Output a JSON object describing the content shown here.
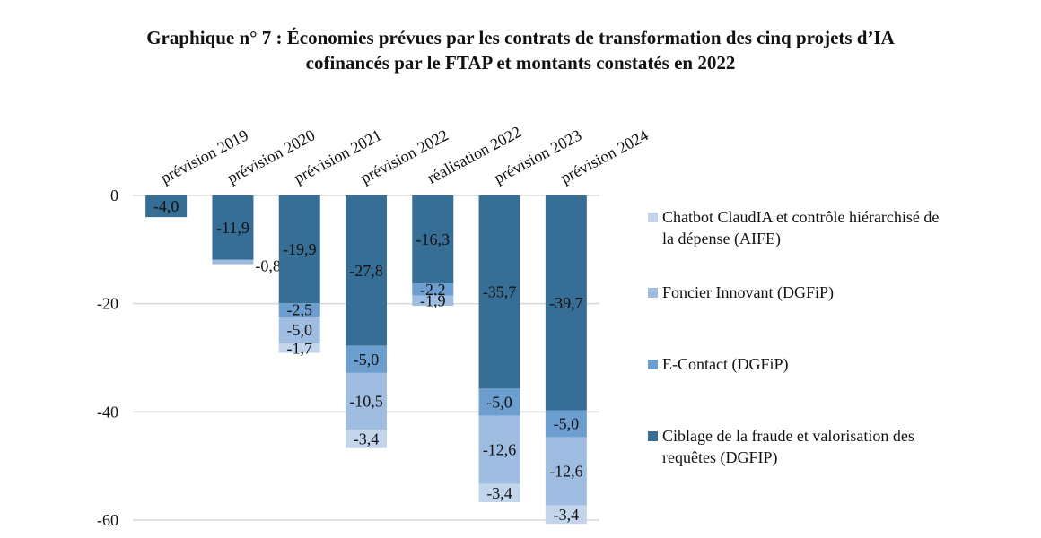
{
  "title_line1": "Graphique n° 7 :  Économies prévues par les contrats de transformation des cinq projets d’IA",
  "title_line2": "cofinancés par le FTAP et montants constatés en 2022",
  "chart_data": {
    "type": "bar",
    "stacked": true,
    "title": "Graphique n° 7 : Économies prévues par les contrats de transformation des cinq projets d’IA cofinancés par le FTAP et montants constatés en 2022",
    "xlabel": "",
    "ylabel": "",
    "categories": [
      "prévision 2019",
      "prévision 2020",
      "prévision 2021",
      "prévision 2022",
      "réalisation 2022",
      "prévision 2023",
      "prévision 2024"
    ],
    "ylim": [
      -60,
      0
    ],
    "yticks": [
      0,
      -20,
      -40,
      -60
    ],
    "ytick_labels": [
      "0",
      "-20",
      "-40",
      "-60"
    ],
    "grid": true,
    "legend_position": "right",
    "series": [
      {
        "name": "Ciblage de la fraude et valorisation des requêtes (DGFIP)",
        "color": "#376e96",
        "values": [
          -4.0,
          -11.9,
          -19.9,
          -27.8,
          -16.3,
          -35.7,
          -39.7
        ],
        "labels": [
          "-4,0",
          "-11,9",
          "-19,9",
          "-27,8",
          "-16,3",
          "-35,7",
          "-39,7"
        ]
      },
      {
        "name": "E-Contact (DGFiP)",
        "color": "#6c9fcf",
        "values": [
          null,
          null,
          -2.5,
          -5.0,
          -2.2,
          -5.0,
          -5.0
        ],
        "labels": [
          "",
          "",
          "-2,5",
          "-5,0",
          "-2,2",
          "-5,0",
          "-5,0"
        ]
      },
      {
        "name": "Foncier Innovant (DGFiP)",
        "color": "#9fbde0",
        "values": [
          null,
          -0.8,
          -5.0,
          -10.5,
          -1.9,
          -12.6,
          -12.6
        ],
        "labels": [
          "",
          "-0,8",
          "-5,0",
          "-10,5",
          "-1,9",
          "-12,6",
          "-12,6"
        ]
      },
      {
        "name": "Chatbot ClaudIA et contrôle hiérarchisé de la dépense (AIFE)",
        "color": "#c3d5eb",
        "values": [
          null,
          null,
          -1.7,
          -3.4,
          null,
          -3.4,
          -3.4
        ],
        "labels": [
          "",
          "",
          "-1,7",
          "-3,4",
          "",
          "-3,4",
          "-3,4"
        ]
      }
    ]
  },
  "legend": [
    {
      "label_lines": [
        "Chatbot ClaudIA et contrôle hiérarchisé de",
        "la dépense (AIFE)"
      ],
      "color": "#c3d5eb"
    },
    {
      "label_lines": [
        "Foncier Innovant (DGFiP)"
      ],
      "color": "#9fbde0"
    },
    {
      "label_lines": [
        "E-Contact (DGFiP)"
      ],
      "color": "#6c9fcf"
    },
    {
      "label_lines": [
        "Ciblage de la fraude et valorisation des",
        "requêtes (DGFIP)"
      ],
      "color": "#376e96"
    }
  ]
}
